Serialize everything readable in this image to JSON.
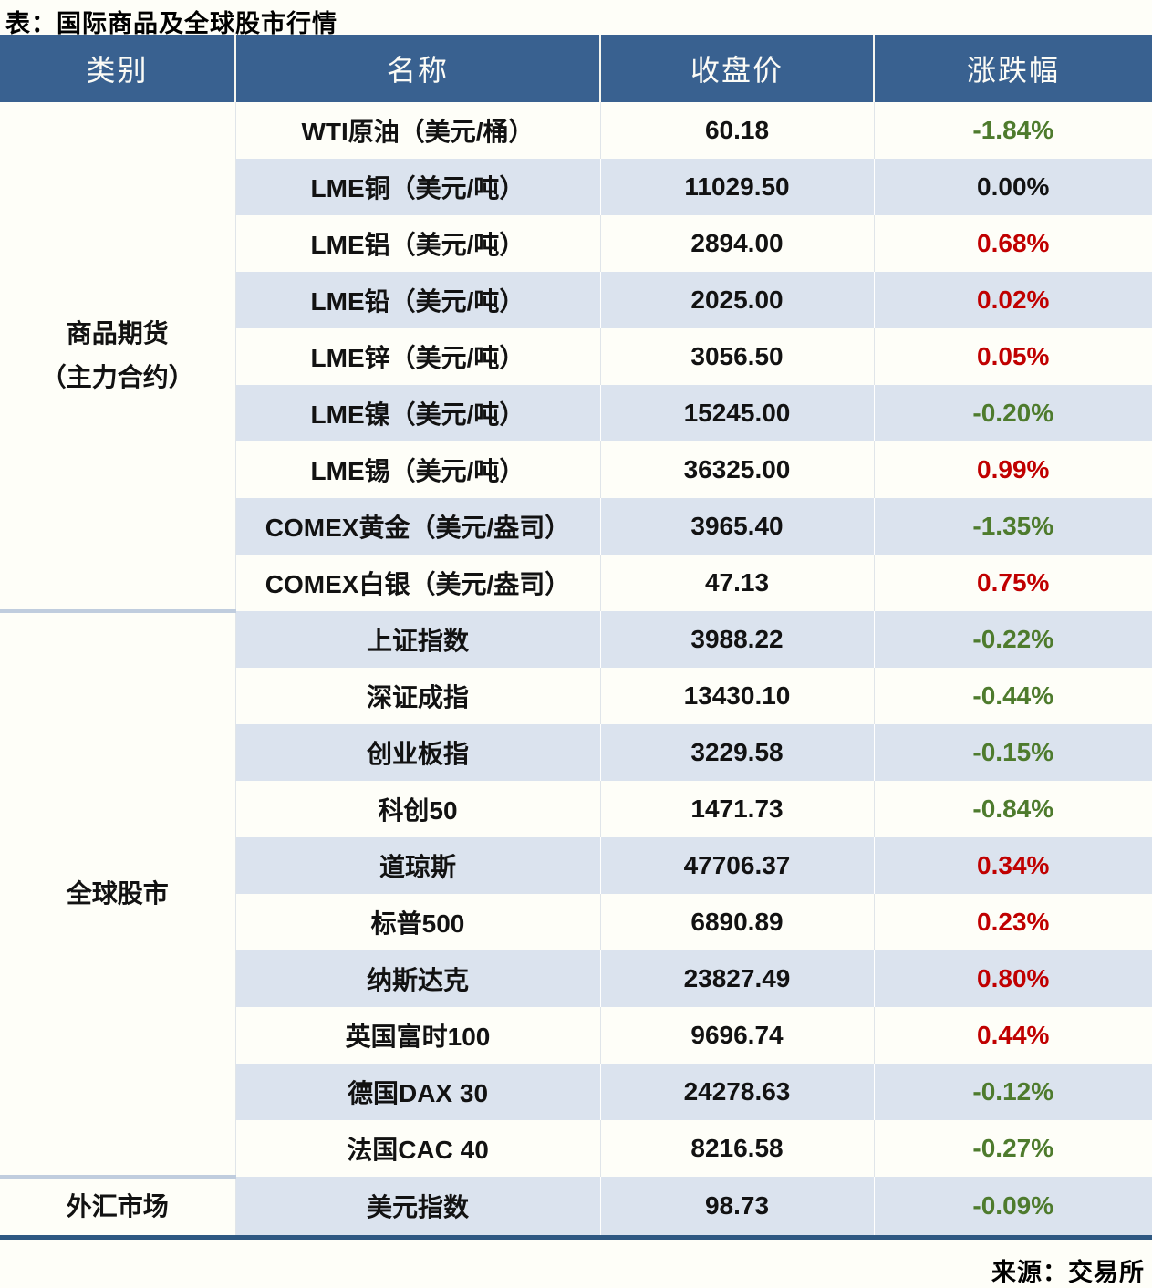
{
  "chart_data": {
    "type": "table",
    "title": "表：国际商品及全球股市行情",
    "columns": [
      "类别",
      "名称",
      "收盘价",
      "涨跌幅"
    ],
    "category_groups": [
      {
        "category": "商品期货（主力合约）",
        "display_lines": [
          "商品期货",
          "（主力合约）"
        ],
        "rows": [
          [
            "WTI原油（美元/桶）",
            "60.18",
            "-1.84%"
          ],
          [
            "LME铜（美元/吨）",
            "11029.50",
            "0.00%"
          ],
          [
            "LME铝（美元/吨）",
            "2894.00",
            "0.68%"
          ],
          [
            "LME铅（美元/吨）",
            "2025.00",
            "0.02%"
          ],
          [
            "LME锌（美元/吨）",
            "3056.50",
            "0.05%"
          ],
          [
            "LME镍（美元/吨）",
            "15245.00",
            "-0.20%"
          ],
          [
            "LME锡（美元/吨）",
            "36325.00",
            "0.99%"
          ],
          [
            "COMEX黄金（美元/盎司）",
            "3965.40",
            "-1.35%"
          ],
          [
            "COMEX白银（美元/盎司）",
            "47.13",
            "0.75%"
          ]
        ]
      },
      {
        "category": "全球股市",
        "display_lines": [
          "全球股市"
        ],
        "rows": [
          [
            "上证指数",
            "3988.22",
            "-0.22%"
          ],
          [
            "深证成指",
            "13430.10",
            "-0.44%"
          ],
          [
            "创业板指",
            "3229.58",
            "-0.15%"
          ],
          [
            "科创50",
            "1471.73",
            "-0.84%"
          ],
          [
            "道琼斯",
            "47706.37",
            "0.34%"
          ],
          [
            "标普500",
            "6890.89",
            "0.23%"
          ],
          [
            "纳斯达克",
            "23827.49",
            "0.80%"
          ],
          [
            "英国富时100",
            "9696.74",
            "0.44%"
          ],
          [
            "德国DAX 30",
            "24278.63",
            "-0.12%"
          ],
          [
            "法国CAC 40",
            "8216.58",
            "-0.27%"
          ]
        ]
      },
      {
        "category": "外汇市场",
        "display_lines": [
          "外汇市场"
        ],
        "rows": [
          [
            "美元指数",
            "98.73",
            "-0.09%"
          ]
        ]
      }
    ],
    "source": "来源：交易所",
    "layout_hints": {
      "row_striping": "alternating white / light blue starting white",
      "change_color_rule": {
        "positive": "#C00000",
        "negative": "#4E7B2D",
        "zero": "#121212"
      }
    },
    "colors": {
      "header_bg": "#396190",
      "stripe": "#DBE3EE",
      "up_red": "#C00000",
      "down_green": "#4E7B2D",
      "bottom_border": "#2E5882",
      "category_separator": "#C0CDDE"
    }
  }
}
